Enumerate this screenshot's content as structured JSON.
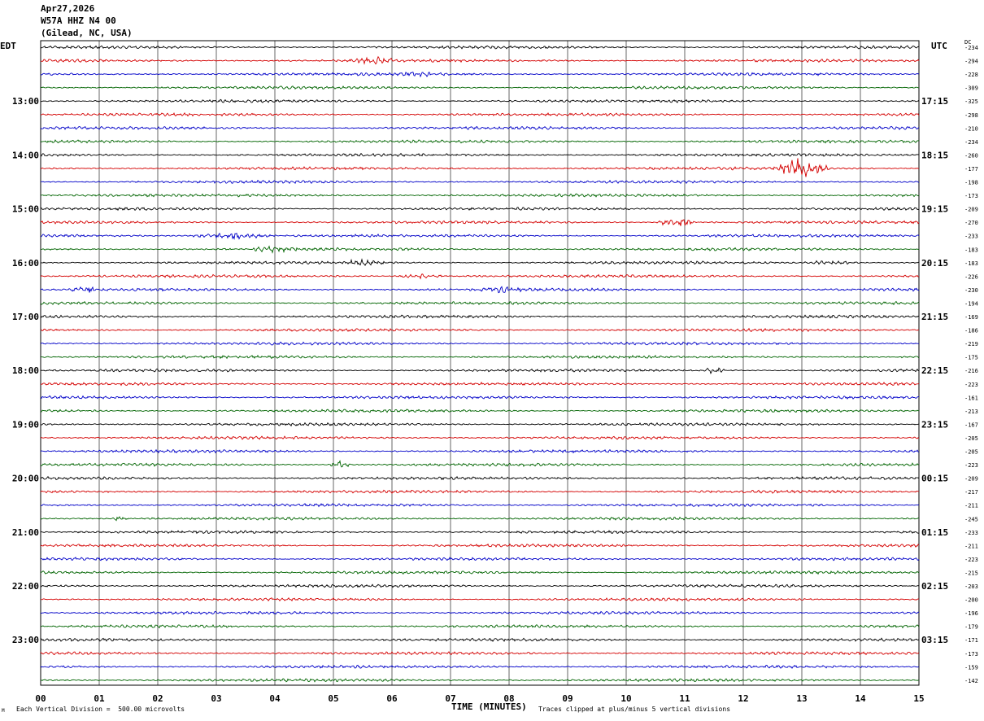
{
  "header": {
    "date": "Apr27,2026",
    "station": "W57A HHZ N4 00",
    "location": "(Gilead, NC, USA)"
  },
  "left_timezone": "EDT",
  "right_timezone": "UTC",
  "dc_label": "DC",
  "footer": {
    "scale_note": "Each Vertical Division =  500.00 microvolts",
    "clip_note": "Traces clipped at plus/minus 5 vertical divisions",
    "corner_mark": "M"
  },
  "colors": [
    "#000000",
    "#d40000",
    "#0000c8",
    "#006400"
  ],
  "chart_data": {
    "type": "line",
    "xlabel": "TIME (MINUTES)",
    "xlim": [
      0,
      15
    ],
    "x_ticks": [
      "00",
      "01",
      "02",
      "03",
      "04",
      "05",
      "06",
      "07",
      "08",
      "09",
      "10",
      "11",
      "12",
      "13",
      "14",
      "15"
    ],
    "left_time_labels": [
      "13:00",
      "14:00",
      "15:00",
      "16:00",
      "17:00",
      "18:00",
      "19:00",
      "20:00",
      "21:00",
      "22:00",
      "23:00"
    ],
    "right_time_labels": [
      "17:15",
      "18:15",
      "19:15",
      "20:15",
      "21:15",
      "22:15",
      "23:15",
      "00:15",
      "01:15",
      "02:15",
      "03:15"
    ],
    "trace_count": 48,
    "trace_minutes": 15,
    "dc_offsets": [
      "-234",
      "-294",
      "-228",
      "-309",
      "-325",
      "-298",
      "-210",
      "-234",
      "-260",
      "-177",
      "-198",
      "-173",
      "-209",
      "-270",
      "-233",
      "-183",
      "-183",
      "-226",
      "-230",
      "-194",
      "-169",
      "-186",
      "-219",
      "-175",
      "-216",
      "-223",
      "-161",
      "-213",
      "-167",
      "-205",
      "-205",
      "-223",
      "-209",
      "-217",
      "-211",
      "-245",
      "-233",
      "-211",
      "-223",
      "-215",
      "-203",
      "-200",
      "-196",
      "-179",
      "-171",
      "-173",
      "-159",
      "-142"
    ],
    "events": [
      {
        "trace": 1,
        "start_min": 5.2,
        "end_min": 6.2,
        "amplitude": 2.5
      },
      {
        "trace": 2,
        "start_min": 6.0,
        "end_min": 7.0,
        "amplitude": 1.5
      },
      {
        "trace": 9,
        "start_min": 12.5,
        "end_min": 13.5,
        "amplitude": 7.0
      },
      {
        "trace": 13,
        "start_min": 10.5,
        "end_min": 11.2,
        "amplitude": 4.0
      },
      {
        "trace": 14,
        "start_min": 2.5,
        "end_min": 4.0,
        "amplitude": 2.0
      },
      {
        "trace": 15,
        "start_min": 3.5,
        "end_min": 4.5,
        "amplitude": 1.8
      },
      {
        "trace": 16,
        "start_min": 5.0,
        "end_min": 6.0,
        "amplitude": 1.8
      },
      {
        "trace": 16,
        "start_min": 13.0,
        "end_min": 14.0,
        "amplitude": 1.8
      },
      {
        "trace": 17,
        "start_min": 6.0,
        "end_min": 7.0,
        "amplitude": 1.5
      },
      {
        "trace": 18,
        "start_min": 0.5,
        "end_min": 1.0,
        "amplitude": 2.0
      },
      {
        "trace": 18,
        "start_min": 7.5,
        "end_min": 8.3,
        "amplitude": 2.0
      },
      {
        "trace": 24,
        "start_min": 11.3,
        "end_min": 11.7,
        "amplitude": 2.5
      },
      {
        "trace": 31,
        "start_min": 4.9,
        "end_min": 5.3,
        "amplitude": 2.5
      },
      {
        "trace": 35,
        "start_min": 1.2,
        "end_min": 1.5,
        "amplitude": 2.0
      }
    ]
  }
}
